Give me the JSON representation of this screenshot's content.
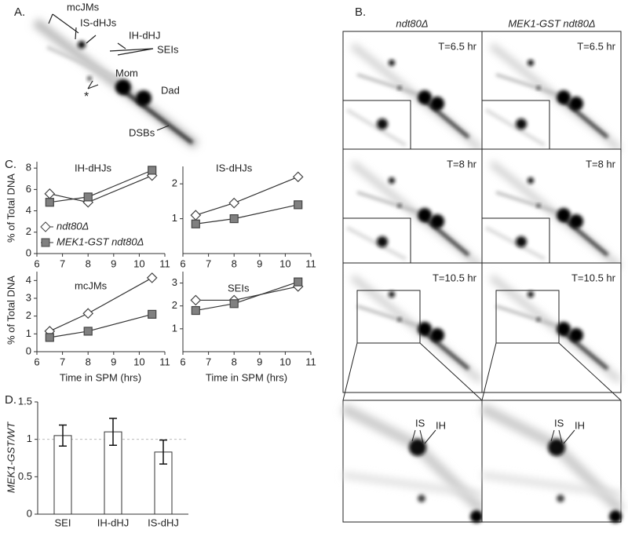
{
  "panel_labels": [
    "A.",
    "B.",
    "C.",
    "D."
  ],
  "gel_a": {
    "labels": [
      "mcJMs",
      "IS-dHJs",
      "IH-dHJ",
      "SEIs",
      "Mom",
      "Dad",
      "*",
      "DSBs"
    ]
  },
  "gel_b": {
    "columns": [
      "ndt80Δ",
      "MEK1-GST ndt80Δ"
    ],
    "times": [
      "T=6.5 hr",
      "T=8 hr",
      "T=10.5 hr"
    ],
    "zoom_labels": [
      "IS",
      "IH"
    ]
  },
  "chart_data": [
    {
      "type": "line",
      "title": "IH-dHJs",
      "y_label": "% of Total DNA",
      "x": [
        6.5,
        8,
        10.5
      ],
      "xlim": [
        6,
        11
      ],
      "xticks": [
        6,
        7,
        8,
        9,
        10,
        11
      ],
      "ylim": [
        0,
        8.6
      ],
      "yticks": [
        0,
        2,
        4,
        6,
        8
      ],
      "series": [
        {
          "name": "ndt80Δ",
          "color": "#ffffff",
          "marker": "diamond",
          "values": [
            5.6,
            4.8,
            7.3
          ]
        },
        {
          "name": "MEK1-GST ndt80Δ",
          "color": "#808080",
          "marker": "square",
          "values": [
            4.8,
            5.3,
            7.8
          ]
        }
      ]
    },
    {
      "type": "line",
      "title": "IS-dHJs",
      "x": [
        6.5,
        8,
        10.5
      ],
      "xlim": [
        6,
        11
      ],
      "xticks": [
        6,
        7,
        8,
        9,
        10,
        11
      ],
      "ylim": [
        0,
        2.5
      ],
      "yticks": [
        1,
        2
      ],
      "series": [
        {
          "color": "#ffffff",
          "marker": "diamond",
          "values": [
            1.1,
            1.45,
            2.2
          ]
        },
        {
          "color": "#808080",
          "marker": "square",
          "values": [
            0.85,
            1.0,
            1.4
          ]
        }
      ]
    },
    {
      "type": "line",
      "title": "mcJMs",
      "y_label": "% of Total DNA",
      "x_label": "Time in SPM (hrs)",
      "x": [
        6.5,
        8,
        10.5
      ],
      "xlim": [
        6,
        11
      ],
      "xticks": [
        6,
        7,
        8,
        9,
        10,
        11
      ],
      "ylim": [
        0,
        4.5
      ],
      "yticks": [
        0,
        1,
        2,
        3,
        4
      ],
      "series": [
        {
          "color": "#ffffff",
          "marker": "diamond",
          "values": [
            1.15,
            2.15,
            4.15
          ]
        },
        {
          "color": "#808080",
          "marker": "square",
          "values": [
            0.8,
            1.15,
            2.1
          ]
        }
      ]
    },
    {
      "type": "line",
      "title": "SEIs",
      "x_label": "Time in SPM (hrs)",
      "x": [
        6.5,
        8,
        10.5
      ],
      "xlim": [
        6,
        11
      ],
      "xticks": [
        6,
        7,
        8,
        9,
        10,
        11
      ],
      "ylim": [
        0,
        3.5
      ],
      "yticks": [
        1,
        2,
        3
      ],
      "series": [
        {
          "color": "#ffffff",
          "marker": "diamond",
          "values": [
            2.25,
            2.25,
            2.85
          ]
        },
        {
          "color": "#808080",
          "marker": "square",
          "values": [
            1.8,
            2.1,
            3.05
          ]
        }
      ]
    },
    {
      "type": "bar",
      "y_label": "MEK1-GST/WT",
      "categories": [
        "SEI",
        "IH-dHJ",
        "IS-dHJ"
      ],
      "values": [
        1.05,
        1.1,
        0.83
      ],
      "errors": [
        0.14,
        0.18,
        0.16
      ],
      "color": "#ffffff",
      "ylim": [
        0,
        1.5
      ],
      "yticks": [
        0,
        0.5,
        1,
        1.5
      ],
      "reference_line": 1
    }
  ]
}
